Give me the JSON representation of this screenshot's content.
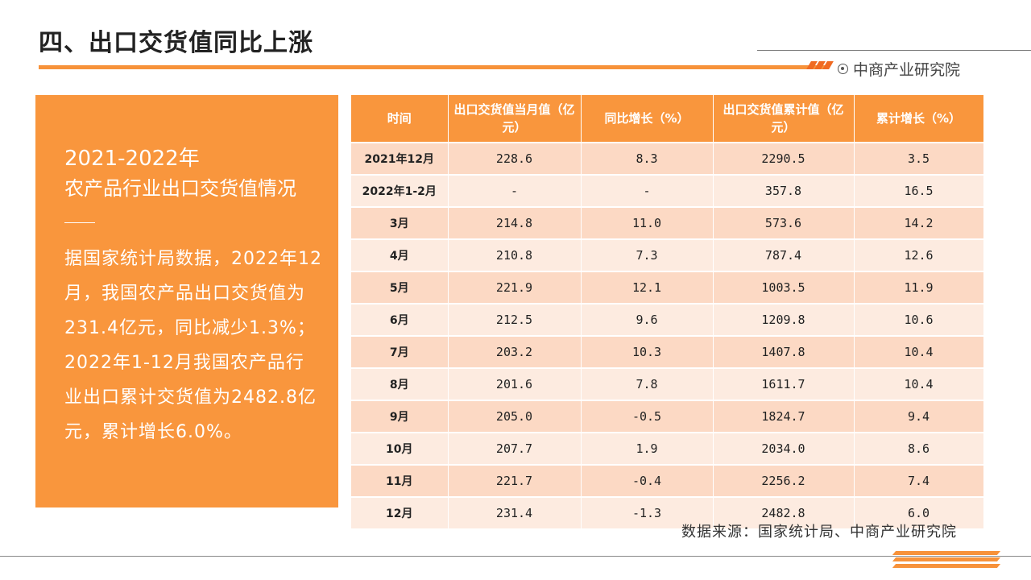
{
  "page": {
    "title": "四、出口交货值同比上涨",
    "brand": "中商产业研究院",
    "source": "数据来源：国家统计局、中商产业研究院"
  },
  "left_panel": {
    "year": "2021-2022年",
    "subtitle": "农产品行业出口交货值情况",
    "body": "据国家统计局数据，2022年12月，我国农产品出口交货值为231.4亿元，同比减少1.3%；2022年1-12月我国农产品行业出口累计交货值为2482.8亿元，累计增长6.0%。"
  },
  "table": {
    "headers": [
      "时间",
      "出口交货值当月值（亿元）",
      "同比增长（%）",
      "出口交货值累计值（亿元）",
      "累计增长（%）"
    ],
    "rows": [
      [
        "2021年12月",
        "228.6",
        "8.3",
        "2290.5",
        "3.5"
      ],
      [
        "2022年1-2月",
        "-",
        "-",
        "357.8",
        "16.5"
      ],
      [
        "3月",
        "214.8",
        "11.0",
        "573.6",
        "14.2"
      ],
      [
        "4月",
        "210.8",
        "7.3",
        "787.4",
        "12.6"
      ],
      [
        "5月",
        "221.9",
        "12.1",
        "1003.5",
        "11.9"
      ],
      [
        "6月",
        "212.5",
        "9.6",
        "1209.8",
        "10.6"
      ],
      [
        "7月",
        "203.2",
        "10.3",
        "1407.8",
        "10.4"
      ],
      [
        "8月",
        "201.6",
        "7.8",
        "1611.7",
        "10.4"
      ],
      [
        "9月",
        "205.0",
        "-0.5",
        "1824.7",
        "9.4"
      ],
      [
        "10月",
        "207.7",
        "1.9",
        "2034.0",
        "8.6"
      ],
      [
        "11月",
        "221.7",
        "-0.4",
        "2256.2",
        "7.4"
      ],
      [
        "12月",
        "231.4",
        "-1.3",
        "2482.8",
        "6.0"
      ]
    ]
  },
  "colors": {
    "accent": "#f9963d",
    "row_odd": "#fcd9c4",
    "row_even": "#fdebe0"
  }
}
